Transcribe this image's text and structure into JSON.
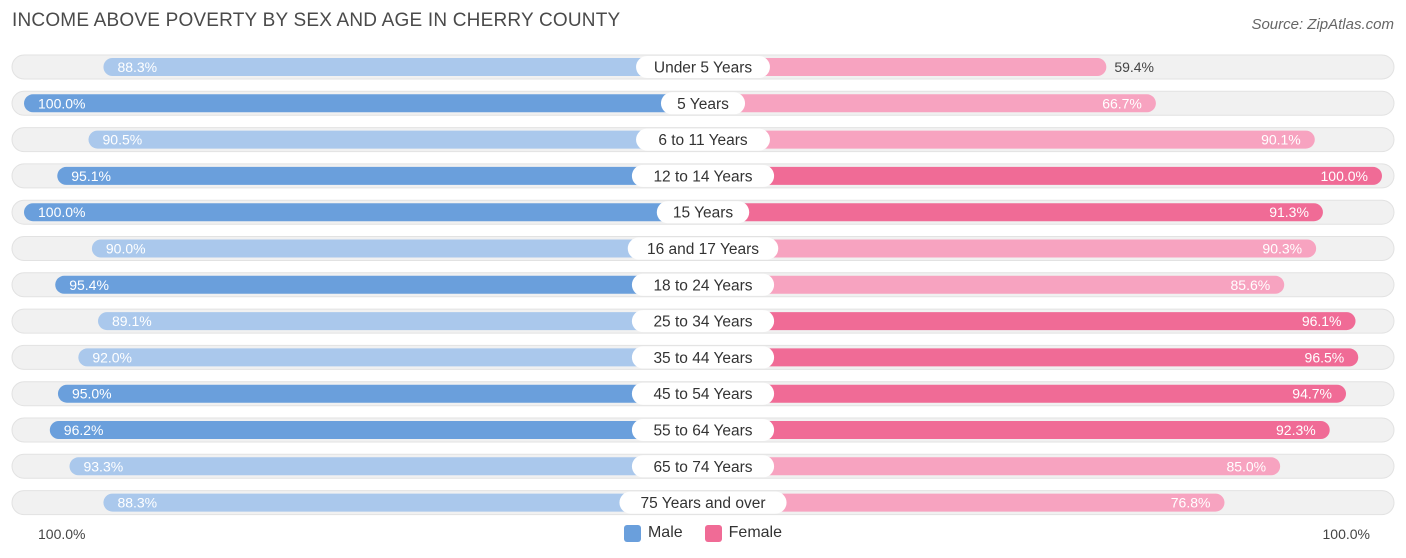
{
  "chart_data": {
    "type": "bar",
    "orientation": "horizontal-diverging",
    "title": "INCOME ABOVE POVERTY BY SEX AND AGE IN CHERRY COUNTY",
    "source": "Source: ZipAtlas.com",
    "categories": [
      "Under 5 Years",
      "5 Years",
      "6 to 11 Years",
      "12 to 14 Years",
      "15 Years",
      "16 and 17 Years",
      "18 to 24 Years",
      "25 to 34 Years",
      "35 to 44 Years",
      "45 to 54 Years",
      "55 to 64 Years",
      "65 to 74 Years",
      "75 Years and over"
    ],
    "series": [
      {
        "name": "Male",
        "values": [
          88.3,
          100.0,
          90.5,
          95.1,
          100.0,
          90.0,
          95.4,
          89.1,
          92.0,
          95.0,
          96.2,
          93.3,
          88.3
        ]
      },
      {
        "name": "Female",
        "values": [
          59.4,
          66.7,
          90.1,
          100.0,
          91.3,
          90.3,
          85.6,
          96.1,
          96.5,
          94.7,
          92.3,
          85.0,
          76.8
        ]
      }
    ],
    "labels": {
      "male": [
        "88.3%",
        "100.0%",
        "90.5%",
        "95.1%",
        "100.0%",
        "90.0%",
        "95.4%",
        "89.1%",
        "92.0%",
        "95.0%",
        "96.2%",
        "93.3%",
        "88.3%"
      ],
      "female": [
        "59.4%",
        "66.7%",
        "90.1%",
        "100.0%",
        "91.3%",
        "90.3%",
        "85.6%",
        "96.1%",
        "96.5%",
        "94.7%",
        "92.3%",
        "85.0%",
        "76.8%"
      ]
    },
    "axis_left_label": "100.0%",
    "axis_right_label": "100.0%",
    "xlim": [
      0,
      100
    ],
    "legend": [
      "Male",
      "Female"
    ],
    "colors": {
      "male_light": "#aac8ec",
      "male_dark": "#6a9fdc",
      "female_light": "#f7a3c0",
      "female_dark": "#f06b96",
      "track": "#f1f1f1"
    }
  }
}
